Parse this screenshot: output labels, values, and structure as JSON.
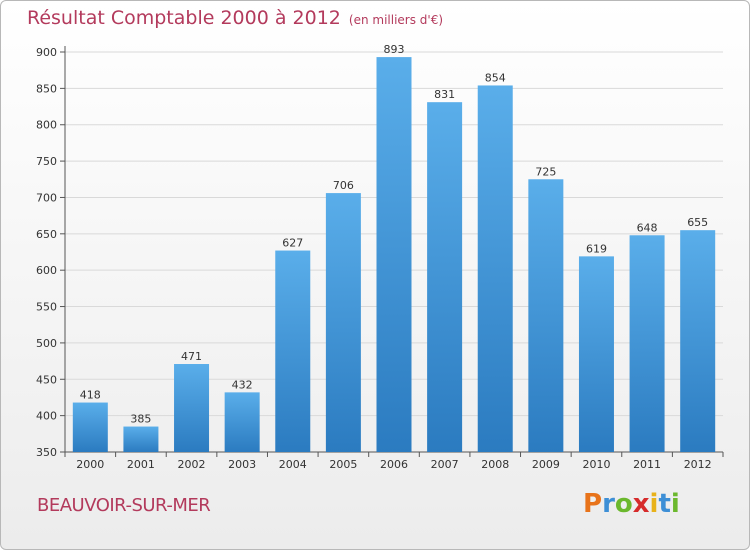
{
  "title": "Résultat Comptable 2000 à 2012",
  "subtitle": "(en milliers d'€)",
  "location": "BEAUVOIR-SUR-MER",
  "logo": {
    "letters": [
      "P",
      "r",
      "o",
      "x",
      "i",
      "t",
      "i"
    ],
    "colors": [
      "#e8731a",
      "#3d8fd6",
      "#6bb82d",
      "#d62b2b",
      "#e8b21a",
      "#3d8fd6",
      "#6bb82d"
    ]
  },
  "colors": {
    "bar_top": "#5aaeea",
    "bar_bottom": "#2b7bc0",
    "title": "#b33a5c",
    "grid": "#d9d9d9"
  },
  "chart_data": {
    "type": "bar",
    "title": "Résultat Comptable 2000 à 2012",
    "subtitle": "(en milliers d'€)",
    "categories": [
      "2000",
      "2001",
      "2002",
      "2003",
      "2004",
      "2005",
      "2006",
      "2007",
      "2008",
      "2009",
      "2010",
      "2011",
      "2012"
    ],
    "values": [
      418,
      385,
      471,
      432,
      627,
      706,
      893,
      831,
      854,
      725,
      619,
      648,
      655
    ],
    "value_labels": [
      "418",
      "385",
      "471",
      "432",
      "627",
      "706",
      "893",
      "831",
      "854",
      "725",
      "619",
      "648",
      "655"
    ],
    "yticks": [
      "350",
      "400",
      "450",
      "500",
      "550",
      "600",
      "650",
      "700",
      "750",
      "800",
      "850",
      "900"
    ],
    "ylim": [
      350,
      900
    ],
    "grid": true,
    "legend": "none"
  }
}
